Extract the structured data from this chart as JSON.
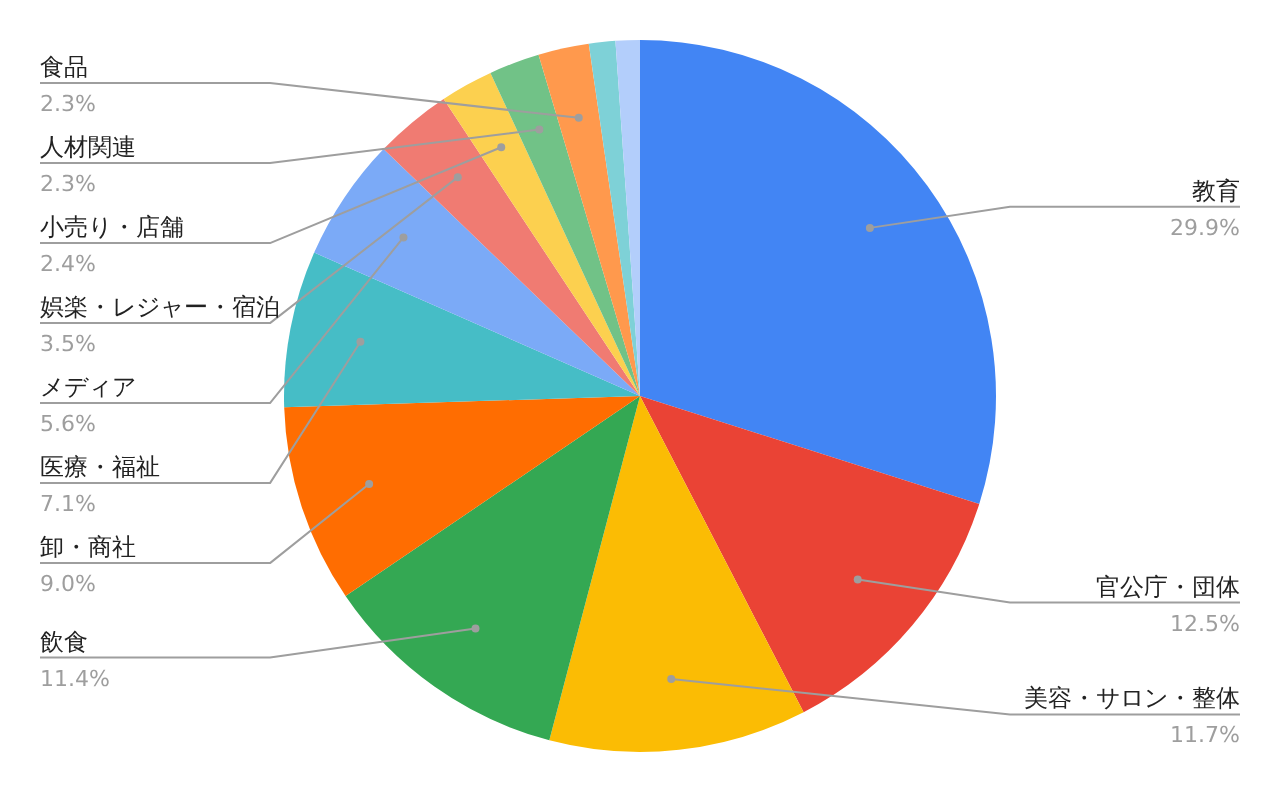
{
  "chart_data": {
    "type": "pie",
    "categories": [
      "教育",
      "官公庁・団体",
      "美容・サロン・整体",
      "飲食",
      "卸・商社",
      "医療・福祉",
      "メディア",
      "娯楽・レジャー・宿泊",
      "小売り・店舗",
      "人材関連",
      "食品",
      null,
      null
    ],
    "values": [
      29.9,
      12.5,
      11.7,
      11.4,
      9.0,
      7.1,
      5.6,
      3.5,
      2.4,
      2.3,
      2.3,
      1.2,
      1.1
    ],
    "value_labels": [
      "29.9%",
      "12.5%",
      "11.7%",
      "11.4%",
      "9.0%",
      "7.1%",
      "5.6%",
      "3.5%",
      "2.4%",
      "2.3%",
      "2.3%",
      null,
      null
    ],
    "colors": [
      "#4285f4",
      "#ea4335",
      "#fbbc04",
      "#34a853",
      "#ff6d01",
      "#46bdc6",
      "#7baaf7",
      "#f07b72",
      "#fcd04f",
      "#71c287",
      "#ff994d",
      "#7ed1d7",
      "#b3cefb"
    ],
    "legend": false
  }
}
